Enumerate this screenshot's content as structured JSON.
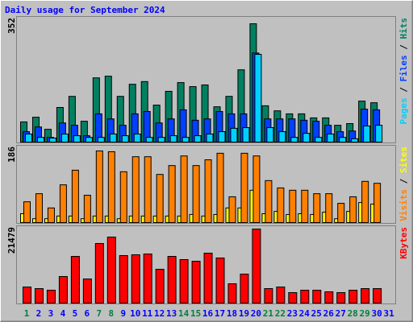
{
  "chart_data": [
    {
      "type": "bar",
      "title": "Daily usage for September 2024",
      "title_color": "#0000ff",
      "legend_separator": " / ",
      "legend_separator_color": "#000000",
      "ylim": [
        0,
        352
      ],
      "yticks": [
        352
      ],
      "series": [
        {
          "name": "Hits",
          "color": "#008060",
          "values": [
            60,
            74,
            38,
            103,
            136,
            62,
            191,
            196,
            136,
            172,
            180,
            110,
            151,
            177,
            165,
            170,
            105,
            136,
            215,
            352,
            108,
            93,
            84,
            84,
            72,
            72,
            50,
            55,
            122,
            117,
            null
          ]
        },
        {
          "name": "Files",
          "color": "#0040ff",
          "values": [
            31,
            45,
            14,
            57,
            50,
            19,
            84,
            69,
            50,
            84,
            91,
            57,
            69,
            96,
            65,
            69,
            91,
            84,
            84,
            265,
            69,
            69,
            69,
            65,
            62,
            50,
            31,
            33,
            98,
            96,
            null
          ]
        },
        {
          "name": "Pages",
          "color": "#00d0ff",
          "values": [
            24,
            14,
            12,
            24,
            19,
            14,
            14,
            24,
            19,
            24,
            14,
            14,
            19,
            14,
            19,
            24,
            31,
            41,
            43,
            261,
            43,
            31,
            14,
            26,
            14,
            24,
            14,
            10,
            48,
            50,
            null
          ]
        }
      ]
    },
    {
      "type": "bar",
      "legend_separator": " / ",
      "legend_separator_color": "#000000",
      "ylim": [
        0,
        186
      ],
      "yticks": [
        186
      ],
      "series": [
        {
          "name": "Sites",
          "color": "#ffff00",
          "values": [
            23,
            10,
            10,
            17,
            17,
            10,
            17,
            17,
            10,
            17,
            17,
            17,
            17,
            17,
            21,
            17,
            21,
            38,
            38,
            84,
            23,
            29,
            21,
            23,
            21,
            27,
            10,
            29,
            52,
            48,
            null
          ]
        },
        {
          "name": "Visits",
          "color": "#ff8000",
          "values": [
            54,
            75,
            38,
            98,
            136,
            71,
            186,
            184,
            132,
            171,
            171,
            125,
            148,
            173,
            148,
            163,
            180,
            67,
            180,
            173,
            109,
            90,
            84,
            84,
            75,
            75,
            50,
            67,
            107,
            102,
            null
          ]
        }
      ]
    },
    {
      "type": "bar",
      "ylim": [
        0,
        21479
      ],
      "yticks": [
        21479
      ],
      "categories": [
        "1",
        "2",
        "3",
        "4",
        "5",
        "6",
        "7",
        "8",
        "9",
        "10",
        "11",
        "12",
        "13",
        "14",
        "15",
        "16",
        "17",
        "18",
        "19",
        "20",
        "21",
        "22",
        "23",
        "24",
        "25",
        "26",
        "27",
        "28",
        "29",
        "30",
        "31"
      ],
      "category_colors": [
        "#008040",
        "#0000ff",
        "#0000ff",
        "#0000ff",
        "#0000ff",
        "#0000ff",
        "#008040",
        "#008040",
        "#0000ff",
        "#0000ff",
        "#0000ff",
        "#0000ff",
        "#0000ff",
        "#008040",
        "#008040",
        "#0000ff",
        "#0000ff",
        "#0000ff",
        "#0000ff",
        "#0000ff",
        "#008040",
        "#008040",
        "#0000ff",
        "#0000ff",
        "#0000ff",
        "#0000ff",
        "#0000ff",
        "#008040",
        "#008040",
        "#0000ff",
        "#0000ff"
      ],
      "series": [
        {
          "name": "KBytes",
          "color": "#ff0000",
          "values": [
            4670,
            4200,
            3740,
            7700,
            13540,
            7000,
            17280,
            19150,
            13780,
            14010,
            14240,
            9810,
            13540,
            12610,
            12140,
            14480,
            13080,
            5600,
            8410,
            21479,
            4200,
            4670,
            3040,
            3740,
            3740,
            3270,
            3040,
            3740,
            4200,
            4200,
            null
          ]
        }
      ]
    }
  ]
}
